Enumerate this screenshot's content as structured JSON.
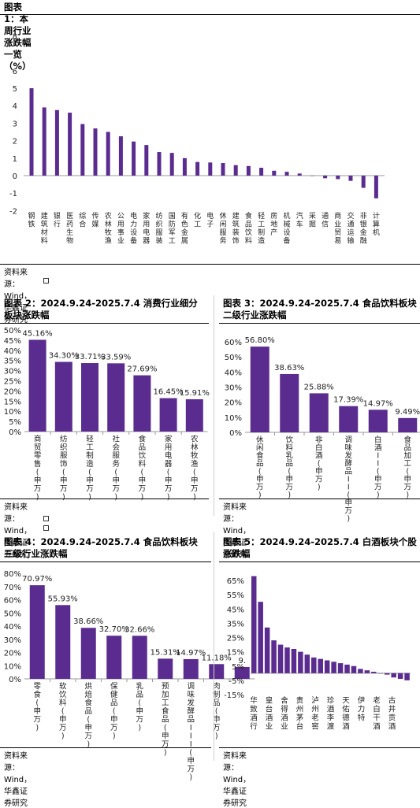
{
  "color": "#5b2c8f",
  "panel1": {
    "title": "图表 1：本周行业涨跌幅一览（%）",
    "source": "资料来源：Wind，华鑫证券研究",
    "chart_data": {
      "type": "bar",
      "title": "图表 1：本周行业涨跌幅一览（%）",
      "ylim": [
        -2,
        9
      ],
      "yticks": [
        8,
        7,
        6,
        5,
        4,
        3,
        2,
        1,
        0,
        -1,
        -2
      ],
      "categories": [
        "钢铁",
        "建筑材料",
        "银行",
        "医药生物",
        "综合",
        "传媒",
        "农林牧渔",
        "公用事业",
        "电力设备",
        "家用电器",
        "纺织服装",
        "国防军工",
        "有色金属",
        "化工",
        "电子",
        "休闲服务",
        "建筑装饰",
        "食品饮料",
        "轻工制造",
        "房地产",
        "机械设备",
        "汽车",
        "采掘",
        "通信",
        "商业贸易",
        "交通运输",
        "非银金融",
        "计算机"
      ],
      "values": [
        5.0,
        3.9,
        3.75,
        3.6,
        2.95,
        2.7,
        2.5,
        2.25,
        1.95,
        1.75,
        1.35,
        1.3,
        1.0,
        0.78,
        0.75,
        0.72,
        0.6,
        0.55,
        0.45,
        0.28,
        0.22,
        0.12,
        0.0,
        -0.15,
        -0.2,
        -0.3,
        -0.7,
        -1.3
      ]
    }
  },
  "panel2": {
    "title": "图表 2：2024.9.24-2025.7.4 消费行业细分板块涨跌幅",
    "source": "资料来源：Wind，华鑫证券研究",
    "chart_data": {
      "type": "bar",
      "title": "图表 2：2024.9.24-2025.7.4 消费行业细分板块涨跌幅",
      "ylim": [
        0,
        50
      ],
      "yticks": [
        "50%",
        "45%",
        "40%",
        "35%",
        "30%",
        "25%",
        "20%",
        "15%",
        "10%",
        "5%",
        "0%"
      ],
      "categories": [
        "商贸零售(申万)",
        "纺织服饰(申万)",
        "轻工制造(申万)",
        "社会服务(申万)",
        "食品饮料(申万)",
        "家用电器(申万)",
        "农林牧渔(申万)"
      ],
      "values": [
        45.16,
        34.3,
        33.71,
        33.59,
        27.69,
        16.45,
        15.91
      ],
      "data_labels": [
        "45.16%",
        "34.30%",
        "33.71%",
        "33.59%",
        "27.69%",
        "16.45%",
        "15.91%"
      ]
    }
  },
  "panel3": {
    "title": "图表 3：2024.9.24-2025.7.4 食品饮料板块二级行业涨跌幅",
    "source": "资料来源：Wind，华鑫证券研究",
    "chart_data": {
      "type": "bar",
      "title": "图表 3：2024.9.24-2025.7.4 食品饮料板块二级行业涨跌幅",
      "ylim": [
        0,
        60
      ],
      "yticks": [
        "60%",
        "50%",
        "40%",
        "30%",
        "20%",
        "10%",
        "0%"
      ],
      "categories": [
        "休闲食品(申万)",
        "饮料乳品(申万)",
        "非白酒(申万)",
        "调味发酵品II(申万)",
        "白酒II(申万)",
        "食品加工(申万)"
      ],
      "values": [
        56.8,
        38.63,
        25.88,
        17.39,
        14.97,
        9.49
      ],
      "data_labels": [
        "56.80%",
        "38.63%",
        "25.88%",
        "17.39%",
        "14.97%",
        "9.49%"
      ]
    }
  },
  "panel4": {
    "title": "图表 4：2024.9.24-2025.7.4 食品饮料板块三级行业涨跌幅",
    "source": "资料来源：Wind，华鑫证券研究",
    "chart_data": {
      "type": "bar",
      "title": "图表 4：2024.9.24-2025.7.4 食品饮料板块三级行业涨跌幅",
      "ylim": [
        0,
        80
      ],
      "yticks": [
        "80%",
        "70%",
        "60%",
        "50%",
        "40%",
        "30%",
        "20%",
        "10%",
        "0%"
      ],
      "categories": [
        "零食(申万)",
        "软饮料(申万)",
        "烘焙食品(申万)",
        "保健品(申万)",
        "乳品(申万)",
        "预加工食品(申万)",
        "调味发酵品III(申万)",
        "肉制品(申万)",
        ""
      ],
      "values": [
        70.97,
        55.93,
        38.66,
        32.7,
        32.66,
        15.31,
        14.97,
        11.18,
        9.0
      ],
      "data_labels": [
        "70.97%",
        "55.93%",
        "38.66%",
        "32.70%",
        "32.66%",
        "15.31%",
        "14.97%",
        "11.18%",
        "9."
      ]
    }
  },
  "panel5": {
    "title": "图表 5：2024.9.24-2025.7.4 白酒板块个股涨跌幅",
    "source": "资料来源：Wind，华鑫证券研究",
    "chart_data": {
      "type": "bar",
      "title": "图表 5：2024.9.24-2025.7.4 白酒板块个股涨跌幅",
      "ylim": [
        -15,
        70
      ],
      "yticks": [
        "65%",
        "55%",
        "45%",
        "35%",
        "25%",
        "15%",
        "5%",
        "-5%",
        "-15%"
      ],
      "tick_values": [
        65,
        55,
        45,
        35,
        25,
        15,
        5,
        -5,
        -15
      ],
      "category_labels": [
        "华致酒行",
        "皇台酒业",
        "舍得酒业",
        "贵州茅台",
        "泸州老窖",
        "珍酒李渡",
        "天佑德酒",
        "伊力特",
        "老白干酒",
        "古井贡酒"
      ],
      "values": [
        68,
        50,
        32,
        23,
        20,
        18,
        17,
        15,
        13,
        11,
        10,
        9,
        8,
        7,
        6,
        5,
        3,
        2,
        1,
        0,
        -1,
        -3,
        -4,
        -5
      ]
    }
  }
}
